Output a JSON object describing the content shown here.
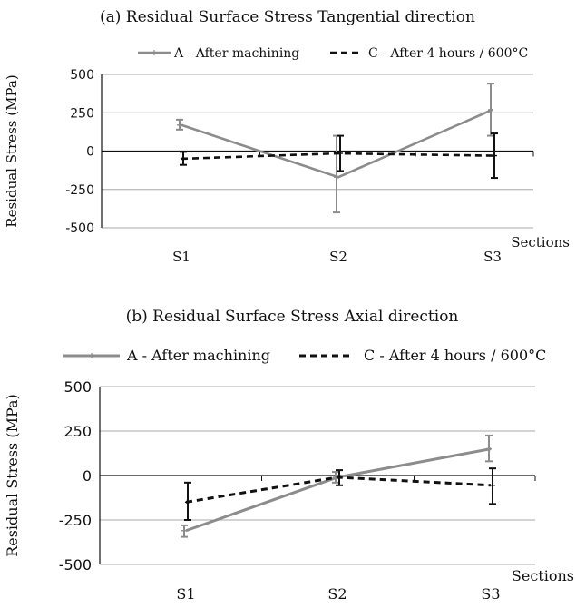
{
  "chart_data": [
    {
      "type": "line",
      "title": "(a) Residual Surface Stress Tangential direction",
      "xlabel": "Sections",
      "ylabel": "Residual Stress (MPa)",
      "categories": [
        "S1",
        "S2",
        "S3"
      ],
      "ylim": [
        -500,
        500
      ],
      "yticks": [
        "500",
        "250",
        "0",
        "-250",
        "-500"
      ],
      "grid": true,
      "legend_position": "top",
      "series": [
        {
          "name": "A - After machining",
          "values": [
            170,
            -170,
            270
          ],
          "error_low": [
            140,
            -400,
            100
          ],
          "error_high": [
            205,
            100,
            440
          ],
          "color": "#8c8c8c",
          "style": "solid"
        },
        {
          "name": "C - After 4 hours / 600°C",
          "values": [
            -50,
            -15,
            -30
          ],
          "error_low": [
            -90,
            -130,
            -175
          ],
          "error_high": [
            -5,
            100,
            115
          ],
          "color": "#111111",
          "style": "dashed"
        }
      ]
    },
    {
      "type": "line",
      "title": "(b) Residual Surface Stress Axial direction",
      "xlabel": "Sections",
      "ylabel": "Residual Stress (MPa)",
      "categories": [
        "S1",
        "S2",
        "S3"
      ],
      "ylim": [
        -500,
        500
      ],
      "yticks": [
        "500",
        "250",
        "0",
        "-250",
        "-500"
      ],
      "grid": true,
      "legend_position": "top",
      "series": [
        {
          "name": "A - After machining",
          "values": [
            -310,
            -10,
            150
          ],
          "error_low": [
            -345,
            -40,
            80
          ],
          "error_high": [
            -280,
            20,
            225
          ],
          "color": "#8c8c8c",
          "style": "solid"
        },
        {
          "name": "C - After 4 hours / 600°C",
          "values": [
            -150,
            -10,
            -55
          ],
          "error_low": [
            -250,
            -55,
            -160
          ],
          "error_high": [
            -40,
            30,
            40
          ],
          "color": "#111111",
          "style": "dashed"
        }
      ]
    }
  ]
}
